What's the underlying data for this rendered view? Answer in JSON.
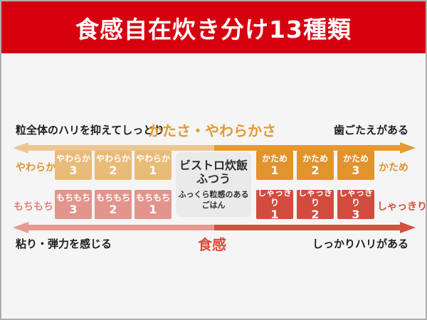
{
  "banner": {
    "title": "食感自在炊き分け13種類"
  },
  "axes": {
    "hardness": {
      "left_label": "粒全体のハリを抑えてしっとり",
      "center_label": "かたさ・やわらかさ",
      "right_label": "歯ごたえがある"
    },
    "texture": {
      "left_label": "粘り・弾力を感じる",
      "center_label": "食感",
      "right_label": "しっかりハリがある"
    }
  },
  "groups": {
    "soft": {
      "side_label": "やわらか",
      "boxes": [
        {
          "name": "やわらか",
          "num": "3"
        },
        {
          "name": "やわらか",
          "num": "2"
        },
        {
          "name": "やわらか",
          "num": "1"
        }
      ]
    },
    "firm": {
      "side_label": "かため",
      "boxes": [
        {
          "name": "かため",
          "num": "1"
        },
        {
          "name": "かため",
          "num": "2"
        },
        {
          "name": "かため",
          "num": "3"
        }
      ]
    },
    "mochi": {
      "side_label": "もちもち",
      "boxes": [
        {
          "name": "もちもち",
          "num": "3"
        },
        {
          "name": "もちもち",
          "num": "2"
        },
        {
          "name": "もちもち",
          "num": "1"
        }
      ]
    },
    "shakkiri": {
      "side_label": "しゃっきり",
      "boxes": [
        {
          "name": "しゃっきり",
          "num": "1"
        },
        {
          "name": "しゃっきり",
          "num": "2"
        },
        {
          "name": "しゃっきり",
          "num": "3"
        }
      ]
    }
  },
  "center_box": {
    "title1": "ビストロ炊飯",
    "title2": "ふつう",
    "desc": "ふっくら粒感のあるごはん"
  },
  "colors": {
    "banner": "#d7000f",
    "page_bg": "#f5f5f5",
    "soft": "#e9bb79",
    "firm": "#e2932c",
    "mochi": "#e2948d",
    "shakkiri": "#d24c3e",
    "axis_soft": "#edc793",
    "axis_firm": "#e5992f",
    "axis_mochi": "#e59a92",
    "axis_shakkiri": "#d5503e",
    "label_orange": "#e0922d",
    "label_mochi": "#e0857d",
    "label_shakkiri": "#d5503e",
    "center_label_top": "#e5992f",
    "center_label_bottom": "#d94f3c",
    "center_box_bg": "#eaeaea"
  }
}
